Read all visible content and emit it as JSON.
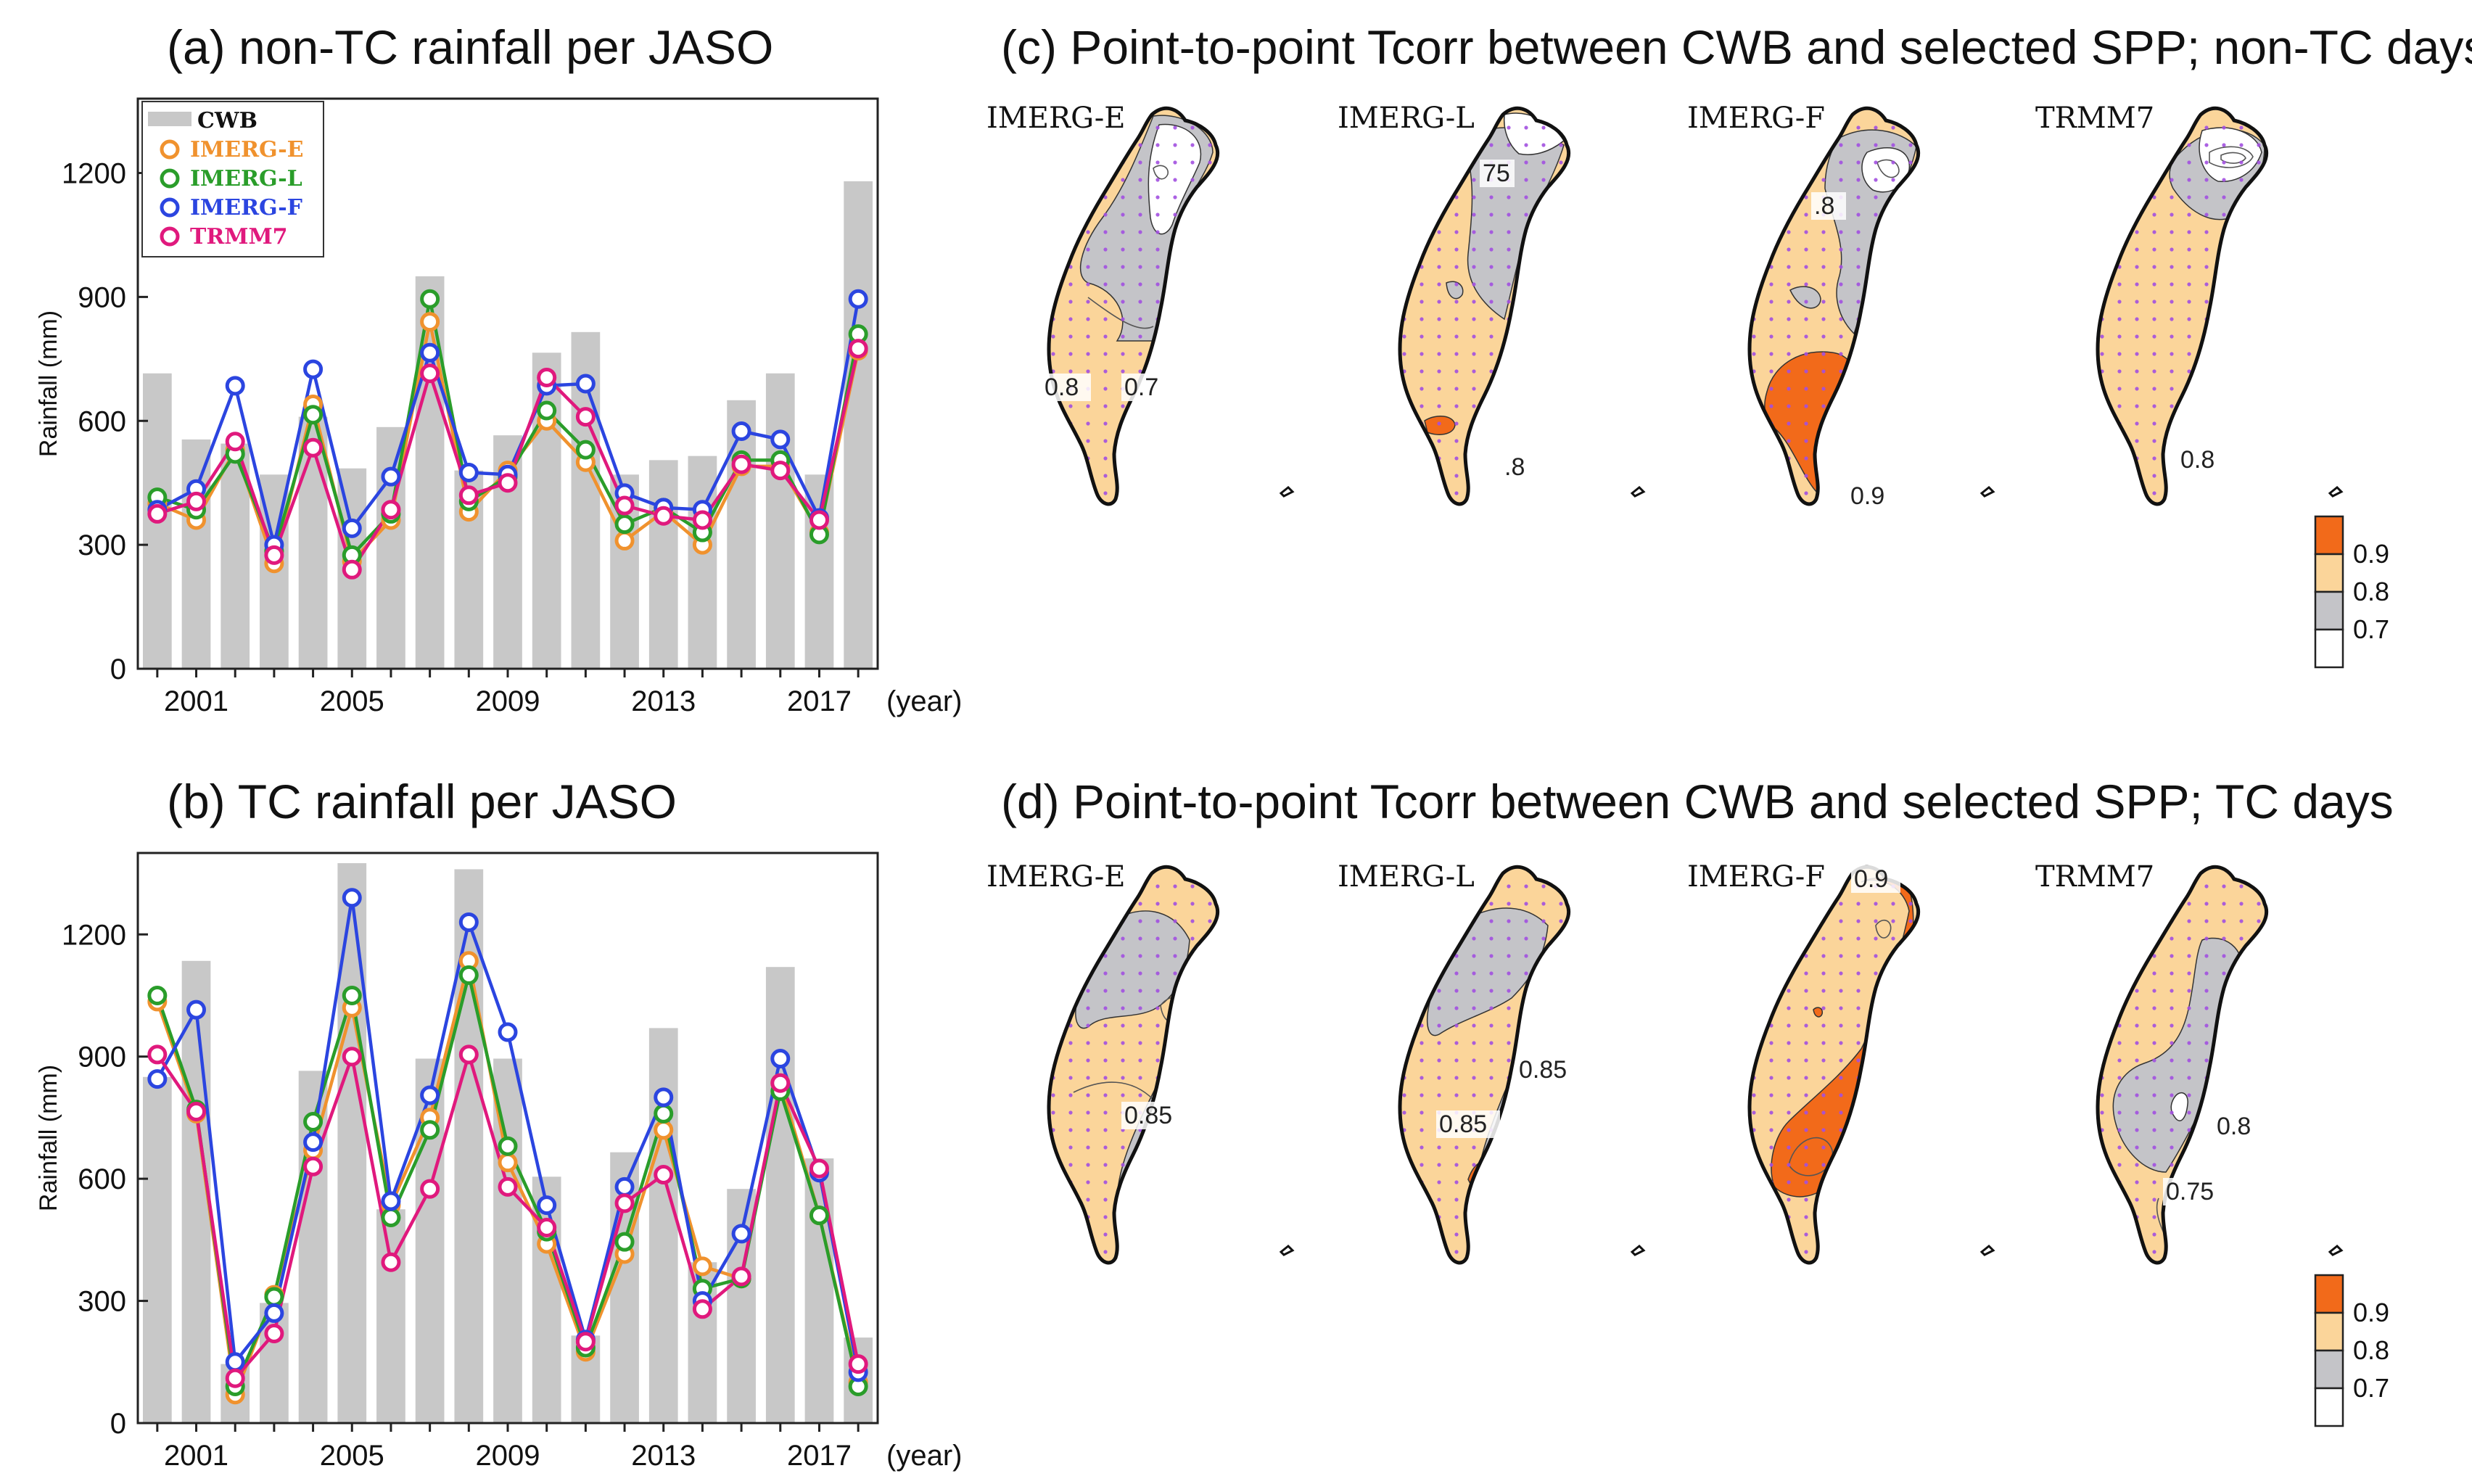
{
  "chart_data": [
    {
      "panel": "a",
      "type": "bar+line",
      "title": "(a) non-TC rainfall per JASO",
      "ylabel": "Rainfall (mm)",
      "xlabel": "(year)",
      "ylim": [
        0,
        1380
      ],
      "yticks": [
        0,
        300,
        600,
        900,
        1200
      ],
      "xticks": [
        "2001",
        "2005",
        "2009",
        "2013",
        "2017"
      ],
      "categories": [
        2000,
        2001,
        2002,
        2003,
        2004,
        2005,
        2006,
        2007,
        2008,
        2009,
        2010,
        2011,
        2012,
        2013,
        2014,
        2015,
        2016,
        2017,
        2018
      ],
      "bars": {
        "name": "CWB",
        "color": "#c8c8c8",
        "values": [
          715,
          555,
          545,
          470,
          610,
          485,
          585,
          950,
          480,
          565,
          765,
          815,
          470,
          505,
          515,
          650,
          715,
          470,
          1180
        ]
      },
      "series": [
        {
          "name": "IMERG-E",
          "color": "#f0922e",
          "values": [
            400,
            360,
            530,
            255,
            640,
            260,
            360,
            840,
            380,
            480,
            600,
            500,
            310,
            380,
            300,
            490,
            490,
            330,
            770
          ]
        },
        {
          "name": "IMERG-L",
          "color": "#2a9d2a",
          "values": [
            415,
            385,
            520,
            285,
            615,
            275,
            375,
            895,
            405,
            465,
            625,
            530,
            350,
            390,
            330,
            505,
            505,
            325,
            810
          ]
        },
        {
          "name": "IMERG-F",
          "color": "#2b45e0",
          "values": [
            385,
            435,
            685,
            300,
            725,
            340,
            465,
            765,
            475,
            470,
            685,
            690,
            425,
            390,
            385,
            575,
            555,
            365,
            895
          ]
        },
        {
          "name": "TRMM7",
          "color": "#e0197d",
          "values": [
            375,
            405,
            550,
            275,
            535,
            240,
            385,
            715,
            420,
            450,
            705,
            610,
            395,
            370,
            360,
            495,
            480,
            360,
            775
          ]
        }
      ],
      "legend": {
        "position": "top-left",
        "entries": [
          "CWB",
          "IMERG-E",
          "IMERG-L",
          "IMERG-F",
          "TRMM7"
        ]
      }
    },
    {
      "panel": "b",
      "type": "bar+line",
      "title": "(b) TC rainfall per JASO",
      "ylabel": "Rainfall (mm)",
      "xlabel": "(year)",
      "ylim": [
        0,
        1400
      ],
      "yticks": [
        0,
        300,
        600,
        900,
        1200
      ],
      "xticks": [
        "2001",
        "2005",
        "2009",
        "2013",
        "2017"
      ],
      "categories": [
        2000,
        2001,
        2002,
        2003,
        2004,
        2005,
        2006,
        2007,
        2008,
        2009,
        2010,
        2011,
        2012,
        2013,
        2014,
        2015,
        2016,
        2017,
        2018
      ],
      "bars": {
        "name": "CWB",
        "color": "#c8c8c8",
        "values": [
          850,
          1135,
          145,
          295,
          865,
          1375,
          525,
          895,
          1360,
          895,
          605,
          215,
          665,
          970,
          395,
          575,
          1120,
          650,
          210
        ]
      },
      "series": [
        {
          "name": "IMERG-E",
          "color": "#f0922e",
          "values": [
            1035,
            760,
            70,
            315,
            670,
            1020,
            535,
            750,
            1135,
            640,
            440,
            175,
            415,
            720,
            385,
            355,
            835,
            510,
            100
          ]
        },
        {
          "name": "IMERG-L",
          "color": "#2a9d2a",
          "values": [
            1050,
            770,
            90,
            310,
            740,
            1050,
            505,
            720,
            1100,
            680,
            470,
            185,
            445,
            760,
            330,
            355,
            815,
            510,
            90
          ]
        },
        {
          "name": "IMERG-F",
          "color": "#2b45e0",
          "values": [
            845,
            1015,
            150,
            270,
            690,
            1290,
            545,
            805,
            1230,
            960,
            535,
            205,
            580,
            800,
            300,
            465,
            895,
            615,
            125
          ]
        },
        {
          "name": "TRMM7",
          "color": "#e0197d",
          "values": [
            905,
            765,
            110,
            220,
            630,
            900,
            395,
            575,
            905,
            580,
            480,
            200,
            540,
            610,
            280,
            360,
            835,
            625,
            145
          ]
        }
      ]
    },
    {
      "panel": "c",
      "type": "contour-map",
      "title": "(c) Point-to-point Tcorr between CWB and selected SPP; non-TC days",
      "maps": [
        "IMERG-E",
        "IMERG-L",
        "IMERG-F",
        "TRMM7"
      ],
      "contour_labels": [
        [
          "0.8",
          "0.7"
        ],
        [
          "75",
          ".8"
        ],
        [
          ".8",
          "0.9"
        ],
        [
          "0.8"
        ]
      ],
      "colorbar": {
        "ticks": [
          "0.9",
          "0.8",
          "0.7"
        ],
        "colors": [
          "#f26a1a",
          "#fbd59a",
          "#c4c4c8",
          "#ffffff"
        ]
      }
    },
    {
      "panel": "d",
      "type": "contour-map",
      "title": "(d) Point-to-point Tcorr between CWB and selected SPP; TC days",
      "maps": [
        "IMERG-E",
        "IMERG-L",
        "IMERG-F",
        "TRMM7"
      ],
      "contour_labels": [
        [
          "0.85"
        ],
        [
          "0.85",
          "0.85"
        ],
        [
          "0.9"
        ],
        [
          "0.8",
          "0.75"
        ]
      ],
      "colorbar": {
        "ticks": [
          "0.9",
          "0.8",
          "0.7"
        ],
        "colors": [
          "#f26a1a",
          "#fbd59a",
          "#c4c4c8",
          "#ffffff"
        ]
      }
    }
  ]
}
